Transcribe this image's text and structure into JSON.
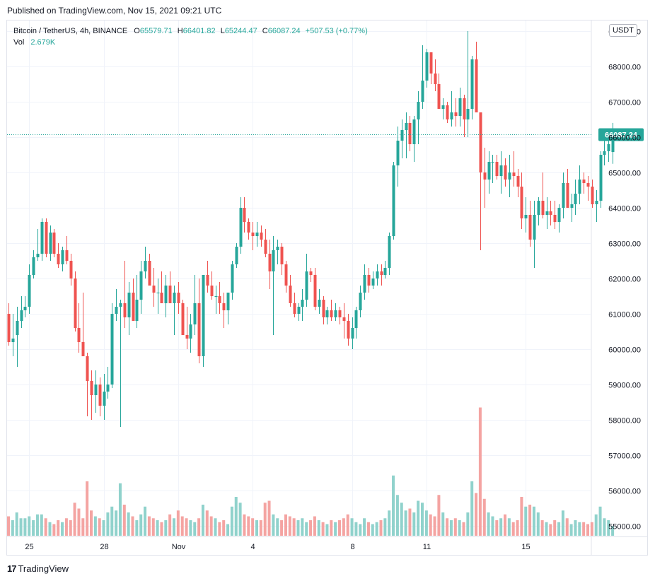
{
  "header": {
    "published": "Published on TradingView.com, Nov 15, 2021 09:21 UTC"
  },
  "legend": {
    "symbol": "Bitcoin / TetherUS, 4h, BINANCE",
    "o_label": "O",
    "o_value": "65579.71",
    "h_label": "H",
    "h_value": "66401.82",
    "l_label": "L",
    "l_value": "65244.47",
    "c_label": "C",
    "c_value": "66087.24",
    "change": "+507.53 (+0.77%)",
    "vol_label": "Vol",
    "vol_value": "2.679K"
  },
  "currency_button": "USDT",
  "footer": {
    "logo_glyph": "17",
    "brand": "TradingView"
  },
  "colors": {
    "up": "#26a69a",
    "down": "#ef5350",
    "up_vol": "#90d2cc",
    "down_vol": "#f4a4a2",
    "grid": "#f0f3fa"
  },
  "chart_data": {
    "type": "candlestick",
    "price_ticks": [
      "69000.00",
      "68000.00",
      "67000.00",
      "66000.00",
      "65000.00",
      "64000.00",
      "63000.00",
      "62000.00",
      "61000.00",
      "60000.00",
      "59000.00",
      "58000.00",
      "57000.00",
      "56000.00",
      "55000.00"
    ],
    "ylim": [
      54700,
      69300
    ],
    "last_price": 66087.24,
    "last_price_label": "66087.24",
    "x_ticks": [
      {
        "label": "25",
        "index": 5
      },
      {
        "label": "28",
        "index": 23
      },
      {
        "label": "Nov",
        "index": 41
      },
      {
        "label": "4",
        "index": 59
      },
      {
        "label": "8",
        "index": 83
      },
      {
        "label": "11",
        "index": 101
      },
      {
        "label": "15",
        "index": 125
      }
    ],
    "candles": [
      {
        "o": 61000,
        "h": 61300,
        "l": 60100,
        "c": 60200,
        "v": 0.5
      },
      {
        "o": 60200,
        "h": 61000,
        "l": 59800,
        "c": 60300,
        "v": 0.4
      },
      {
        "o": 60400,
        "h": 61200,
        "l": 59500,
        "c": 60800,
        "v": 0.6
      },
      {
        "o": 60800,
        "h": 61500,
        "l": 60600,
        "c": 61100,
        "v": 0.45
      },
      {
        "o": 61100,
        "h": 61500,
        "l": 60900,
        "c": 61200,
        "v": 0.45
      },
      {
        "o": 61200,
        "h": 62400,
        "l": 61000,
        "c": 62100,
        "v": 0.5
      },
      {
        "o": 62100,
        "h": 62800,
        "l": 62000,
        "c": 62600,
        "v": 0.4
      },
      {
        "o": 62600,
        "h": 63400,
        "l": 62500,
        "c": 62700,
        "v": 0.55
      },
      {
        "o": 62700,
        "h": 63700,
        "l": 62500,
        "c": 63600,
        "v": 0.55
      },
      {
        "o": 63600,
        "h": 63700,
        "l": 62600,
        "c": 62700,
        "v": 0.45
      },
      {
        "o": 62700,
        "h": 63500,
        "l": 62500,
        "c": 63300,
        "v": 0.35
      },
      {
        "o": 63300,
        "h": 63400,
        "l": 62600,
        "c": 62700,
        "v": 0.3
      },
      {
        "o": 62700,
        "h": 63000,
        "l": 62300,
        "c": 62400,
        "v": 0.4
      },
      {
        "o": 62400,
        "h": 62900,
        "l": 62200,
        "c": 62800,
        "v": 0.35
      },
      {
        "o": 62800,
        "h": 63200,
        "l": 62400,
        "c": 62500,
        "v": 0.45
      },
      {
        "o": 62500,
        "h": 62700,
        "l": 61800,
        "c": 62000,
        "v": 0.4
      },
      {
        "o": 62000,
        "h": 62200,
        "l": 60500,
        "c": 60600,
        "v": 0.85
      },
      {
        "o": 60600,
        "h": 61300,
        "l": 59900,
        "c": 60200,
        "v": 0.7
      },
      {
        "o": 60200,
        "h": 61600,
        "l": 59800,
        "c": 59800,
        "v": 0.45
      },
      {
        "o": 59800,
        "h": 59900,
        "l": 58100,
        "c": 59100,
        "v": 1.4
      },
      {
        "o": 59100,
        "h": 59400,
        "l": 58000,
        "c": 58700,
        "v": 0.65
      },
      {
        "o": 58700,
        "h": 59400,
        "l": 58200,
        "c": 59000,
        "v": 0.5
      },
      {
        "o": 59000,
        "h": 59200,
        "l": 58100,
        "c": 58400,
        "v": 0.45
      },
      {
        "o": 58400,
        "h": 59300,
        "l": 58000,
        "c": 58800,
        "v": 0.4
      },
      {
        "o": 58800,
        "h": 59500,
        "l": 58600,
        "c": 59000,
        "v": 0.6
      },
      {
        "o": 59000,
        "h": 61300,
        "l": 58900,
        "c": 61000,
        "v": 0.75
      },
      {
        "o": 61000,
        "h": 61700,
        "l": 60800,
        "c": 61200,
        "v": 0.65
      },
      {
        "o": 61200,
        "h": 61400,
        "l": 57800,
        "c": 61300,
        "v": 1.35
      },
      {
        "o": 61300,
        "h": 62500,
        "l": 60600,
        "c": 60900,
        "v": 0.8
      },
      {
        "o": 60900,
        "h": 61900,
        "l": 60400,
        "c": 61600,
        "v": 0.6
      },
      {
        "o": 61600,
        "h": 62000,
        "l": 60800,
        "c": 60800,
        "v": 0.5
      },
      {
        "o": 60800,
        "h": 62100,
        "l": 60600,
        "c": 61400,
        "v": 0.4
      },
      {
        "o": 61400,
        "h": 62500,
        "l": 61000,
        "c": 62200,
        "v": 0.55
      },
      {
        "o": 62200,
        "h": 62900,
        "l": 62000,
        "c": 62500,
        "v": 0.75
      },
      {
        "o": 62500,
        "h": 62700,
        "l": 61800,
        "c": 61800,
        "v": 0.5
      },
      {
        "o": 61800,
        "h": 62300,
        "l": 61200,
        "c": 61600,
        "v": 0.45
      },
      {
        "o": 61600,
        "h": 62000,
        "l": 61000,
        "c": 61600,
        "v": 0.4
      },
      {
        "o": 61600,
        "h": 62200,
        "l": 61300,
        "c": 61300,
        "v": 0.35
      },
      {
        "o": 61300,
        "h": 62100,
        "l": 60900,
        "c": 61800,
        "v": 0.4
      },
      {
        "o": 61800,
        "h": 62200,
        "l": 61300,
        "c": 61300,
        "v": 0.55
      },
      {
        "o": 61300,
        "h": 61800,
        "l": 60400,
        "c": 61600,
        "v": 0.45
      },
      {
        "o": 61600,
        "h": 61900,
        "l": 61000,
        "c": 61300,
        "v": 0.65
      },
      {
        "o": 61300,
        "h": 61400,
        "l": 60500,
        "c": 60400,
        "v": 0.5
      },
      {
        "o": 60400,
        "h": 61200,
        "l": 60000,
        "c": 60300,
        "v": 0.45
      },
      {
        "o": 60300,
        "h": 61000,
        "l": 59900,
        "c": 60700,
        "v": 0.4
      },
      {
        "o": 60700,
        "h": 62100,
        "l": 60400,
        "c": 61300,
        "v": 0.35
      },
      {
        "o": 61300,
        "h": 62000,
        "l": 59600,
        "c": 59800,
        "v": 0.45
      },
      {
        "o": 59800,
        "h": 62100,
        "l": 59500,
        "c": 62100,
        "v": 0.8
      },
      {
        "o": 62100,
        "h": 62500,
        "l": 61600,
        "c": 61800,
        "v": 0.65
      },
      {
        "o": 61800,
        "h": 62200,
        "l": 61400,
        "c": 61500,
        "v": 0.5
      },
      {
        "o": 61500,
        "h": 61800,
        "l": 61000,
        "c": 61500,
        "v": 0.45
      },
      {
        "o": 61500,
        "h": 61900,
        "l": 61000,
        "c": 61300,
        "v": 0.35
      },
      {
        "o": 61300,
        "h": 61600,
        "l": 60600,
        "c": 61100,
        "v": 0.4
      },
      {
        "o": 61100,
        "h": 61600,
        "l": 60700,
        "c": 61600,
        "v": 0.3
      },
      {
        "o": 61600,
        "h": 62500,
        "l": 61400,
        "c": 62400,
        "v": 0.75
      },
      {
        "o": 62400,
        "h": 63000,
        "l": 62300,
        "c": 62900,
        "v": 1.0
      },
      {
        "o": 62900,
        "h": 64300,
        "l": 62700,
        "c": 64000,
        "v": 0.85
      },
      {
        "o": 64000,
        "h": 64300,
        "l": 63300,
        "c": 63600,
        "v": 0.55
      },
      {
        "o": 63600,
        "h": 63700,
        "l": 63100,
        "c": 63300,
        "v": 0.5
      },
      {
        "o": 63300,
        "h": 63600,
        "l": 62800,
        "c": 63200,
        "v": 0.45
      },
      {
        "o": 63200,
        "h": 63600,
        "l": 62900,
        "c": 63300,
        "v": 0.4
      },
      {
        "o": 63300,
        "h": 63500,
        "l": 62900,
        "c": 63100,
        "v": 0.4
      },
      {
        "o": 63100,
        "h": 63400,
        "l": 62600,
        "c": 62700,
        "v": 0.85
      },
      {
        "o": 62700,
        "h": 63100,
        "l": 61700,
        "c": 62200,
        "v": 0.9
      },
      {
        "o": 62200,
        "h": 63200,
        "l": 60400,
        "c": 62800,
        "v": 0.55
      },
      {
        "o": 62800,
        "h": 63100,
        "l": 62400,
        "c": 62900,
        "v": 0.45
      },
      {
        "o": 62900,
        "h": 63000,
        "l": 62100,
        "c": 62400,
        "v": 0.4
      },
      {
        "o": 62400,
        "h": 62500,
        "l": 61600,
        "c": 61800,
        "v": 0.55
      },
      {
        "o": 61800,
        "h": 62100,
        "l": 61200,
        "c": 61300,
        "v": 0.5
      },
      {
        "o": 61300,
        "h": 61600,
        "l": 60900,
        "c": 61000,
        "v": 0.45
      },
      {
        "o": 61000,
        "h": 61300,
        "l": 60800,
        "c": 61200,
        "v": 0.4
      },
      {
        "o": 61200,
        "h": 61700,
        "l": 60800,
        "c": 61400,
        "v": 0.45
      },
      {
        "o": 61400,
        "h": 62700,
        "l": 61200,
        "c": 62200,
        "v": 0.35
      },
      {
        "o": 62200,
        "h": 62300,
        "l": 61900,
        "c": 62100,
        "v": 0.4
      },
      {
        "o": 62100,
        "h": 62300,
        "l": 61100,
        "c": 61200,
        "v": 0.5
      },
      {
        "o": 61200,
        "h": 61700,
        "l": 61000,
        "c": 61400,
        "v": 0.4
      },
      {
        "o": 61400,
        "h": 61500,
        "l": 60700,
        "c": 60900,
        "v": 0.35
      },
      {
        "o": 60900,
        "h": 61200,
        "l": 60700,
        "c": 61100,
        "v": 0.3
      },
      {
        "o": 61100,
        "h": 61400,
        "l": 60800,
        "c": 60900,
        "v": 0.4
      },
      {
        "o": 60900,
        "h": 61300,
        "l": 60800,
        "c": 61100,
        "v": 0.35
      },
      {
        "o": 61100,
        "h": 61200,
        "l": 60700,
        "c": 60900,
        "v": 0.4
      },
      {
        "o": 60900,
        "h": 61300,
        "l": 60300,
        "c": 60800,
        "v": 0.45
      },
      {
        "o": 60800,
        "h": 61000,
        "l": 60100,
        "c": 60300,
        "v": 0.55
      },
      {
        "o": 60300,
        "h": 60900,
        "l": 60000,
        "c": 60600,
        "v": 0.45
      },
      {
        "o": 60600,
        "h": 61200,
        "l": 60300,
        "c": 61100,
        "v": 0.35
      },
      {
        "o": 61100,
        "h": 61800,
        "l": 60900,
        "c": 61600,
        "v": 0.3
      },
      {
        "o": 61600,
        "h": 62400,
        "l": 61400,
        "c": 62100,
        "v": 0.45
      },
      {
        "o": 62100,
        "h": 62300,
        "l": 61600,
        "c": 61800,
        "v": 0.35
      },
      {
        "o": 61800,
        "h": 62200,
        "l": 61700,
        "c": 62000,
        "v": 0.3
      },
      {
        "o": 62000,
        "h": 62400,
        "l": 61800,
        "c": 62200,
        "v": 0.35
      },
      {
        "o": 62200,
        "h": 62400,
        "l": 61800,
        "c": 62100,
        "v": 0.4
      },
      {
        "o": 62100,
        "h": 62500,
        "l": 62000,
        "c": 62300,
        "v": 0.45
      },
      {
        "o": 62300,
        "h": 63300,
        "l": 62100,
        "c": 63200,
        "v": 0.65
      },
      {
        "o": 63200,
        "h": 65300,
        "l": 63100,
        "c": 65200,
        "v": 1.55
      },
      {
        "o": 65200,
        "h": 66300,
        "l": 64600,
        "c": 65900,
        "v": 1.05
      },
      {
        "o": 65900,
        "h": 66500,
        "l": 65400,
        "c": 66200,
        "v": 0.85
      },
      {
        "o": 66200,
        "h": 66700,
        "l": 65400,
        "c": 66400,
        "v": 0.65
      },
      {
        "o": 66400,
        "h": 66600,
        "l": 65600,
        "c": 65800,
        "v": 0.7
      },
      {
        "o": 65800,
        "h": 66600,
        "l": 65300,
        "c": 66500,
        "v": 0.6
      },
      {
        "o": 66500,
        "h": 67300,
        "l": 65800,
        "c": 67000,
        "v": 0.9
      },
      {
        "o": 67000,
        "h": 68600,
        "l": 66800,
        "c": 67600,
        "v": 0.85
      },
      {
        "o": 67600,
        "h": 68500,
        "l": 67400,
        "c": 68400,
        "v": 0.65
      },
      {
        "o": 68400,
        "h": 68400,
        "l": 67500,
        "c": 67800,
        "v": 0.55
      },
      {
        "o": 67800,
        "h": 68200,
        "l": 67300,
        "c": 67500,
        "v": 0.5
      },
      {
        "o": 67500,
        "h": 67800,
        "l": 66800,
        "c": 66800,
        "v": 1.05
      },
      {
        "o": 66800,
        "h": 67100,
        "l": 66500,
        "c": 66900,
        "v": 0.6
      },
      {
        "o": 66900,
        "h": 67000,
        "l": 66400,
        "c": 66500,
        "v": 0.45
      },
      {
        "o": 66500,
        "h": 67300,
        "l": 66300,
        "c": 66700,
        "v": 0.4
      },
      {
        "o": 66700,
        "h": 67100,
        "l": 66300,
        "c": 66600,
        "v": 0.45
      },
      {
        "o": 66600,
        "h": 67400,
        "l": 66300,
        "c": 67100,
        "v": 0.4
      },
      {
        "o": 67100,
        "h": 67200,
        "l": 66000,
        "c": 66500,
        "v": 0.35
      },
      {
        "o": 66500,
        "h": 69000,
        "l": 66000,
        "c": 66800,
        "v": 0.6
      },
      {
        "o": 66800,
        "h": 68300,
        "l": 66500,
        "c": 68200,
        "v": 1.4
      },
      {
        "o": 68200,
        "h": 68700,
        "l": 66700,
        "c": 66700,
        "v": 1.1
      },
      {
        "o": 66700,
        "h": 66700,
        "l": 62800,
        "c": 65000,
        "v": 3.3
      },
      {
        "o": 65000,
        "h": 65700,
        "l": 64000,
        "c": 64800,
        "v": 0.95
      },
      {
        "o": 64800,
        "h": 65600,
        "l": 64400,
        "c": 65300,
        "v": 0.6
      },
      {
        "o": 65300,
        "h": 65500,
        "l": 64700,
        "c": 65300,
        "v": 0.5
      },
      {
        "o": 65300,
        "h": 65500,
        "l": 64800,
        "c": 64900,
        "v": 0.4
      },
      {
        "o": 64900,
        "h": 65600,
        "l": 64400,
        "c": 65200,
        "v": 0.45
      },
      {
        "o": 65200,
        "h": 65400,
        "l": 64600,
        "c": 64800,
        "v": 0.55
      },
      {
        "o": 64800,
        "h": 65500,
        "l": 64300,
        "c": 65000,
        "v": 0.45
      },
      {
        "o": 65000,
        "h": 65600,
        "l": 64600,
        "c": 64900,
        "v": 0.35
      },
      {
        "o": 64900,
        "h": 65100,
        "l": 64300,
        "c": 64600,
        "v": 0.4
      },
      {
        "o": 64600,
        "h": 65000,
        "l": 63400,
        "c": 63700,
        "v": 1.0
      },
      {
        "o": 63700,
        "h": 64300,
        "l": 63300,
        "c": 63800,
        "v": 0.75
      },
      {
        "o": 63800,
        "h": 64200,
        "l": 62900,
        "c": 63100,
        "v": 0.8
      },
      {
        "o": 63100,
        "h": 64200,
        "l": 62300,
        "c": 63800,
        "v": 0.75
      },
      {
        "o": 63800,
        "h": 64300,
        "l": 63500,
        "c": 64200,
        "v": 0.6
      },
      {
        "o": 64200,
        "h": 65000,
        "l": 63700,
        "c": 63800,
        "v": 0.4
      },
      {
        "o": 63800,
        "h": 64300,
        "l": 63400,
        "c": 63900,
        "v": 0.35
      },
      {
        "o": 63900,
        "h": 64200,
        "l": 63500,
        "c": 63800,
        "v": 0.3
      },
      {
        "o": 63800,
        "h": 64200,
        "l": 63400,
        "c": 63600,
        "v": 0.4
      },
      {
        "o": 63600,
        "h": 64100,
        "l": 63300,
        "c": 64000,
        "v": 0.35
      },
      {
        "o": 64000,
        "h": 65000,
        "l": 63700,
        "c": 64700,
        "v": 0.65
      },
      {
        "o": 64700,
        "h": 65100,
        "l": 64000,
        "c": 64000,
        "v": 0.45
      },
      {
        "o": 64000,
        "h": 64400,
        "l": 63600,
        "c": 64100,
        "v": 0.3
      },
      {
        "o": 64100,
        "h": 64800,
        "l": 63800,
        "c": 64400,
        "v": 0.4
      },
      {
        "o": 64400,
        "h": 65200,
        "l": 64100,
        "c": 64800,
        "v": 0.35
      },
      {
        "o": 64800,
        "h": 65000,
        "l": 64400,
        "c": 64700,
        "v": 0.35
      },
      {
        "o": 64700,
        "h": 64900,
        "l": 64200,
        "c": 64600,
        "v": 0.3
      },
      {
        "o": 64600,
        "h": 64800,
        "l": 64000,
        "c": 64100,
        "v": 0.35
      },
      {
        "o": 64100,
        "h": 64500,
        "l": 63600,
        "c": 64200,
        "v": 0.55
      },
      {
        "o": 64200,
        "h": 65600,
        "l": 64000,
        "c": 65500,
        "v": 0.75
      },
      {
        "o": 65500,
        "h": 66100,
        "l": 65200,
        "c": 65600,
        "v": 0.45
      },
      {
        "o": 65600,
        "h": 66200,
        "l": 65300,
        "c": 65800,
        "v": 0.4
      },
      {
        "o": 65579.71,
        "h": 66401.82,
        "l": 65244.47,
        "c": 66087.24,
        "v": 0.25
      }
    ]
  }
}
